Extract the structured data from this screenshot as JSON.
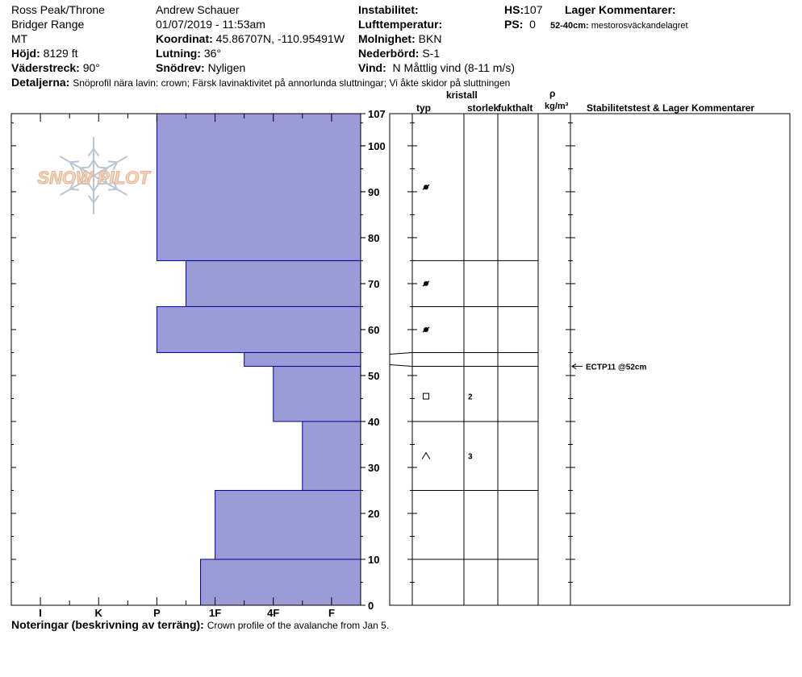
{
  "header": {
    "location": "Ross Peak/Throne",
    "range": "Bridger Range",
    "state": "MT",
    "observer": "Andrew Schauer",
    "datetime": "01/07/2019 - 11:53am",
    "elevation_label": "Höjd:",
    "elevation_value": "8129 ft",
    "aspect_label": "Väderstreck:",
    "aspect_value": "90°",
    "coord_label": "Koordinat:",
    "coord_value": "45.86707N, -110.95491W",
    "slope_label": "Lutning:",
    "slope_value": "36°",
    "wind_loading_label": "Snödrev:",
    "wind_loading_value": "Nyligen",
    "instability_label": "Instabilitet:",
    "air_temp_label": "Lufttemperatur:",
    "sky_label": "Molnighet:",
    "sky_value": "BKN",
    "precip_label": "Nederbörd:",
    "precip_value": "S-1",
    "wind_label": "Vind:",
    "wind_value": "N  Måttlig vind (8-11 m/s)",
    "hs_label": "HS:",
    "hs_value": "107",
    "ps_label": "PS:",
    "ps_value": "0",
    "layer_comments_label": "Lager Kommentarer:",
    "layer_comment_range": "52-40cm:",
    "layer_comment_text": "mestorosväckandelagret",
    "details_label": "Detaljerna:",
    "details_value": "Snöprofil nära lavin: crown; Färsk lavinaktivitet på annorlunda sluttningar; Vi åkte skidor på sluttningen"
  },
  "columns": {
    "crystal": "kristall",
    "type": "typ",
    "size": "storlek",
    "moisture": "fukthalt",
    "rho": "ρ",
    "density_unit": "kg/m³",
    "stability": "Stabilitetstest & Lager Kommentarer"
  },
  "footer": {
    "notes_label": "Noteringar (beskrivning av terräng):",
    "notes_value": "Crown profile of the avalanche from Jan 5."
  },
  "logo_text": "SNOW PILOT",
  "colors": {
    "hardness_fill": "#9b9bd8",
    "hardness_stroke": "#00009a"
  },
  "chart_data": {
    "type": "bar",
    "orientation": "horizontal",
    "y_axis": {
      "range": [
        0,
        107
      ],
      "ticks": [
        0,
        10,
        20,
        30,
        40,
        50,
        60,
        70,
        80,
        90,
        100,
        107
      ]
    },
    "x_axis": {
      "categories": [
        "I",
        "K",
        "P",
        "1F",
        "4F",
        "F"
      ],
      "category_index": [
        1,
        3,
        5,
        7,
        9,
        11
      ],
      "range": [
        0,
        12
      ]
    },
    "hardness_layers": [
      {
        "top": 107,
        "bottom": 75,
        "hardness_index": 5
      },
      {
        "top": 75,
        "bottom": 65,
        "hardness_index": 6
      },
      {
        "top": 65,
        "bottom": 55,
        "hardness_index": 5
      },
      {
        "top": 55,
        "bottom": 52,
        "hardness_index": 8
      },
      {
        "top": 52,
        "bottom": 40,
        "hardness_index": 9
      },
      {
        "top": 40,
        "bottom": 25,
        "hardness_index": 10
      },
      {
        "top": 25,
        "bottom": 10,
        "hardness_index": 7
      },
      {
        "top": 10,
        "bottom": 0,
        "hardness_index": 6.5
      }
    ],
    "layer_boundaries": [
      107,
      75,
      65,
      55,
      52,
      40,
      25,
      10
    ],
    "grain_observations": [
      {
        "depth": 91,
        "symbol": "decomposing"
      },
      {
        "depth": 70,
        "symbol": "decomposing"
      },
      {
        "depth": 60,
        "symbol": "decomposing"
      },
      {
        "depth": 45.5,
        "symbol": "faceted",
        "size": "2"
      },
      {
        "depth": 32.5,
        "symbol": "depth-hoar",
        "size": "3"
      }
    ],
    "stability_tests": [
      {
        "depth": 52,
        "label": "ECTP11 @52cm"
      }
    ]
  }
}
